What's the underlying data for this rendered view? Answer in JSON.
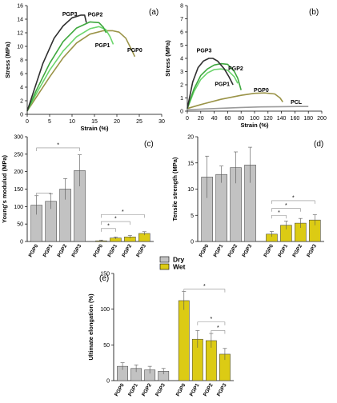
{
  "colors": {
    "dry": "#c2c2c2",
    "wet": "#dccb14",
    "PGP0": "#9a9347",
    "PGP1": "#6cd66c",
    "PGP2": "#3ea83e",
    "PGP3": "#2f2f2f",
    "PCL": "#9a9a9a",
    "axis": "#000000",
    "bracket": "#8a8a8a"
  },
  "legend": {
    "dry": "Dry",
    "wet": "Wet"
  },
  "chart_data": [
    {
      "id": "a",
      "panel_label": "(a)",
      "type": "line",
      "xlabel": "Strain (%)",
      "ylabel": "Stress (MPa)",
      "xlim": [
        0,
        30
      ],
      "ylim": [
        0,
        16
      ],
      "xticks": [
        0,
        5,
        10,
        15,
        20,
        25,
        30
      ],
      "yticks": [
        0,
        2,
        4,
        6,
        8,
        10,
        12,
        14,
        16
      ],
      "series": [
        {
          "name": "PGP0",
          "color_key": "PGP0",
          "x": [
            0,
            2,
            5,
            8,
            11,
            14,
            17,
            19,
            20.5,
            22,
            23.5,
            24
          ],
          "y": [
            0.5,
            2.5,
            5.5,
            8.3,
            10.5,
            11.8,
            12.3,
            12.3,
            12.1,
            11.2,
            9.2,
            8.5
          ]
        },
        {
          "name": "PGP1",
          "color_key": "PGP1",
          "x": [
            0,
            2,
            5,
            8,
            11,
            14,
            16,
            17.5,
            18.5,
            19.2
          ],
          "y": [
            0.5,
            3,
            6.5,
            9.3,
            11.4,
            12.6,
            12.9,
            12.5,
            11.4,
            10.3
          ]
        },
        {
          "name": "PGP2",
          "color_key": "PGP2",
          "x": [
            0,
            2,
            5,
            8,
            11,
            14,
            16,
            17,
            17.6
          ],
          "y": [
            0.5,
            3.5,
            7.5,
            10.7,
            12.7,
            13.6,
            13.5,
            12.8,
            12.0
          ]
        },
        {
          "name": "PGP3",
          "color_key": "PGP3",
          "x": [
            0,
            1.5,
            3.5,
            6,
            8,
            10,
            12,
            12.8,
            13.2
          ],
          "y": [
            0.5,
            3.5,
            7.5,
            11.2,
            13.0,
            14.2,
            14.6,
            14.6,
            13.5
          ]
        }
      ],
      "labels": [
        {
          "text": "PGP3",
          "x": 9.5,
          "y": 14.5
        },
        {
          "text": "PGP2",
          "x": 15.2,
          "y": 14.4
        },
        {
          "text": "PGP1",
          "x": 16.8,
          "y": 9.9
        },
        {
          "text": "PGP0",
          "x": 24.0,
          "y": 9.2
        }
      ]
    },
    {
      "id": "b",
      "panel_label": "(b)",
      "type": "line",
      "xlabel": "Strain (%)",
      "ylabel": "Stress (MPa)",
      "xlim": [
        0,
        200
      ],
      "ylim": [
        0,
        8
      ],
      "xticks": [
        0,
        20,
        40,
        60,
        80,
        100,
        120,
        140,
        160,
        180,
        200
      ],
      "yticks": [
        0,
        1,
        2,
        3,
        4,
        5,
        6,
        7,
        8
      ],
      "series": [
        {
          "name": "PCL",
          "color_key": "PCL",
          "x": [
            0,
            20,
            50,
            80,
            110,
            140,
            165,
            180
          ],
          "y": [
            0.1,
            0.15,
            0.22,
            0.28,
            0.32,
            0.34,
            0.35,
            0.35
          ]
        },
        {
          "name": "PGP0",
          "color_key": "PGP0",
          "x": [
            0,
            20,
            50,
            80,
            100,
            115,
            130,
            138,
            142
          ],
          "y": [
            0.2,
            0.5,
            0.9,
            1.2,
            1.35,
            1.38,
            1.3,
            1.0,
            0.7
          ]
        },
        {
          "name": "PGP1",
          "color_key": "PGP1",
          "x": [
            0,
            10,
            20,
            30,
            40,
            50,
            60,
            70,
            75
          ],
          "y": [
            0.2,
            1.5,
            2.4,
            2.9,
            3.15,
            3.2,
            3.1,
            2.6,
            2.1
          ]
        },
        {
          "name": "PGP2",
          "color_key": "PGP2",
          "x": [
            0,
            10,
            20,
            30,
            40,
            50,
            60,
            70,
            75,
            80
          ],
          "y": [
            0.2,
            1.7,
            2.7,
            3.2,
            3.5,
            3.6,
            3.55,
            3.0,
            2.5,
            1.6
          ]
        },
        {
          "name": "PGP3",
          "color_key": "PGP3",
          "x": [
            0,
            8,
            16,
            24,
            32,
            38,
            45,
            55,
            62,
            68
          ],
          "y": [
            0.2,
            2.2,
            3.3,
            3.8,
            4.0,
            4.0,
            3.8,
            3.2,
            2.6,
            2.0
          ]
        }
      ],
      "labels": [
        {
          "text": "PGP3",
          "x": 25,
          "y": 4.45
        },
        {
          "text": "PGP2",
          "x": 72,
          "y": 3.1
        },
        {
          "text": "PGP1",
          "x": 52,
          "y": 1.9
        },
        {
          "text": "PGP0",
          "x": 110,
          "y": 1.45
        },
        {
          "text": "PCL",
          "x": 162,
          "y": 0.55
        }
      ]
    },
    {
      "id": "c",
      "panel_label": "(c)",
      "type": "bar",
      "ylabel": "Young's modulud (MPa)",
      "ylim": [
        0,
        300
      ],
      "yticks": [
        0,
        50,
        100,
        150,
        200,
        250,
        300
      ],
      "categories": [
        "PGP0",
        "PGP1",
        "PGP2",
        "PGP3",
        "PGP0",
        "PGP1",
        "PGP2",
        "PGP3"
      ],
      "groups": [
        "dry",
        "dry",
        "dry",
        "dry",
        "wet",
        "wet",
        "wet",
        "wet"
      ],
      "values": [
        104,
        115,
        150,
        203,
        2,
        10,
        13,
        23
      ],
      "errors": [
        27,
        22,
        30,
        45,
        2,
        3,
        4,
        5
      ],
      "brackets": [
        {
          "from": 0,
          "to": 3,
          "y": 268,
          "text": "*"
        },
        {
          "from": 0,
          "to": 1,
          "y": 139,
          "text": ""
        },
        {
          "from": 4,
          "to": 5,
          "y": 37,
          "text": "*"
        },
        {
          "from": 4,
          "to": 6,
          "y": 57,
          "text": "*"
        },
        {
          "from": 4,
          "to": 7,
          "y": 77,
          "text": "*"
        }
      ]
    },
    {
      "id": "d",
      "panel_label": "(d)",
      "type": "bar",
      "ylabel": "Tensile strength (MPa)",
      "ylim": [
        0,
        20
      ],
      "yticks": [
        0,
        5,
        10,
        15,
        20
      ],
      "categories": [
        "PGP0",
        "PGP1",
        "PGP2",
        "PGP3",
        "PGP0",
        "PGP1",
        "PGP2",
        "PGP3"
      ],
      "groups": [
        "dry",
        "dry",
        "dry",
        "dry",
        "wet",
        "wet",
        "wet",
        "wet"
      ],
      "values": [
        12.3,
        12.8,
        14.1,
        14.6,
        1.4,
        3.1,
        3.5,
        4.1
      ],
      "errors": [
        4.0,
        1.6,
        3.0,
        3.4,
        0.5,
        0.8,
        0.9,
        1.0
      ],
      "brackets": [
        {
          "from": 4,
          "to": 5,
          "y": 5.0,
          "text": "*"
        },
        {
          "from": 4,
          "to": 6,
          "y": 6.3,
          "text": "*"
        },
        {
          "from": 4,
          "to": 7,
          "y": 7.8,
          "text": "*"
        }
      ]
    },
    {
      "id": "e",
      "panel_label": "(e)",
      "type": "bar",
      "ylabel": "Ultimate elongation (%)",
      "ylim": [
        0,
        150
      ],
      "yticks": [
        0,
        50,
        100,
        150
      ],
      "categories": [
        "PGP0",
        "PGP1",
        "PGP2",
        "PGP3",
        "PGP0",
        "PGP1",
        "PGP2",
        "PGP3"
      ],
      "groups": [
        "dry",
        "dry",
        "dry",
        "dry",
        "wet",
        "wet",
        "wet",
        "wet"
      ],
      "values": [
        20,
        17,
        15,
        13,
        112,
        58,
        56,
        37
      ],
      "errors": [
        5,
        5,
        5,
        4,
        13,
        12,
        10,
        8
      ],
      "brackets": [
        {
          "from": 4,
          "to": 7,
          "y": 128,
          "text": "*"
        },
        {
          "from": 5,
          "to": 7,
          "y": 82,
          "text": "*"
        },
        {
          "from": 6,
          "to": 7,
          "y": 70,
          "text": "*"
        }
      ]
    }
  ]
}
